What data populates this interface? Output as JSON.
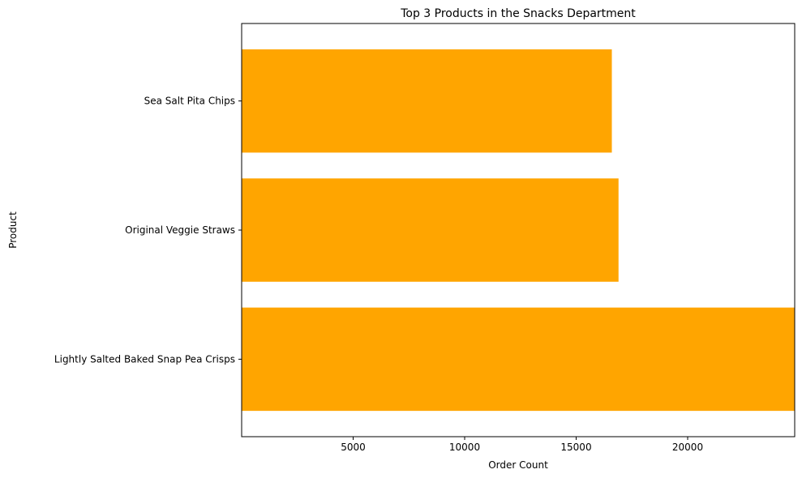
{
  "chart_data": {
    "type": "bar",
    "orientation": "horizontal",
    "title": "Top 3 Products in the Snacks Department",
    "xlabel": "Order Count",
    "ylabel": "Product",
    "categories": [
      "Lightly Salted Baked Snap Pea Crisps",
      "Original Veggie Straws",
      "Sea Salt Pita Chips"
    ],
    "values": [
      24800,
      16900,
      16600
    ],
    "xlim": [
      0,
      24800
    ],
    "xticks": [
      "5000",
      "10000",
      "15000",
      "20000"
    ],
    "bar_color": "#FFA500",
    "grid": false,
    "legend": "none"
  }
}
